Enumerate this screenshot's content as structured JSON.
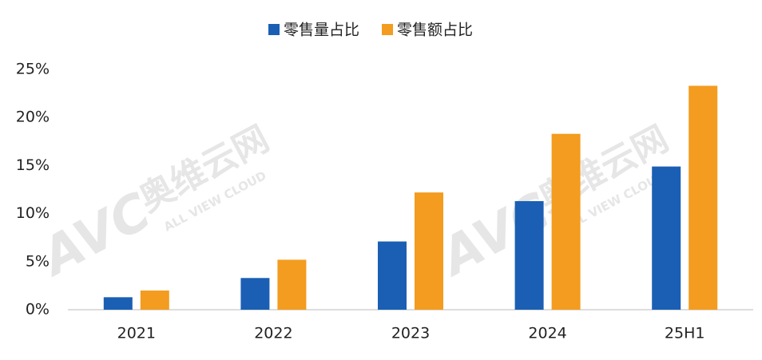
{
  "chart_data": {
    "type": "bar",
    "categories": [
      "2021",
      "2022",
      "2023",
      "2024",
      "25H1"
    ],
    "series": [
      {
        "name": "零售量占比",
        "color": "#1a5fb4",
        "values": [
          1.3,
          3.3,
          7.1,
          11.3,
          14.9
        ]
      },
      {
        "name": "零售额占比",
        "color": "#f39c1f",
        "values": [
          2.0,
          5.2,
          12.2,
          18.3,
          23.3
        ]
      }
    ],
    "ylim": [
      0,
      25
    ],
    "yticks": [
      {
        "value": 0,
        "label": "0%"
      },
      {
        "value": 5,
        "label": "5%"
      },
      {
        "value": 10,
        "label": "10%"
      },
      {
        "value": 15,
        "label": "15%"
      },
      {
        "value": 20,
        "label": "20%"
      },
      {
        "value": 25,
        "label": "25%"
      }
    ],
    "grid": false,
    "legend": "top",
    "watermark": {
      "logo": "AVC",
      "name": "奥维云网",
      "sub": "ALL VIEW CLOUD"
    }
  }
}
